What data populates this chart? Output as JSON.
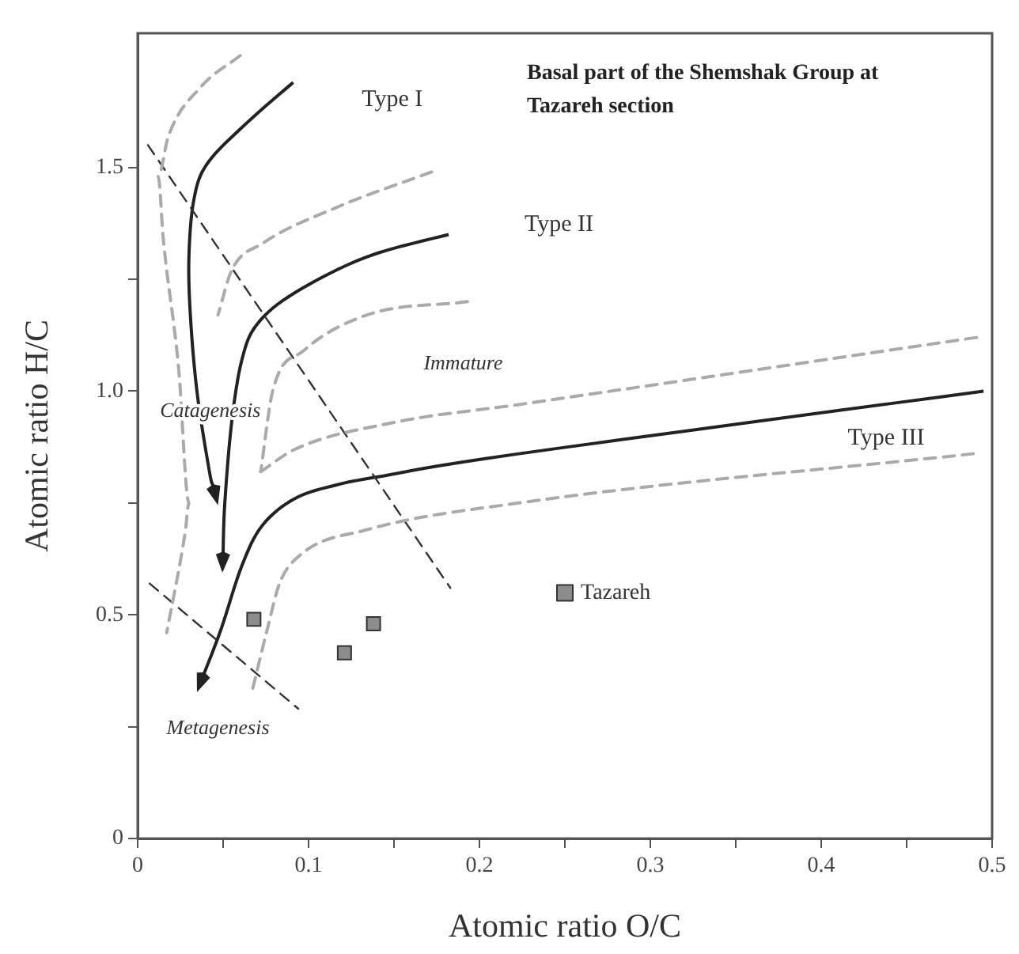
{
  "chart_data": {
    "type": "scatter",
    "title": "Basal part of the Shemshak Group at Tazareh section",
    "xlabel": "Atomic ratio O/C",
    "ylabel": "Atomic ratio H/C",
    "xlim": [
      0,
      0.5
    ],
    "ylim": [
      0,
      1.8
    ],
    "xticks": [
      0,
      {
        "value": 0.05,
        "label": null
      },
      0.1,
      {
        "value": 0.15,
        "label": null
      },
      0.2,
      {
        "value": 0.25,
        "label": null
      },
      0.3,
      {
        "value": 0.35,
        "label": null
      },
      0.4,
      {
        "value": 0.45,
        "label": null
      },
      0.5
    ],
    "yticks": [
      0,
      {
        "value": 0.25,
        "label": null
      },
      0.5,
      {
        "value": 0.75,
        "label": null
      },
      {
        "value": 1,
        "label": "1.0"
      },
      {
        "value": 1.25,
        "label": null
      },
      1.5
    ],
    "grid": false,
    "legend": "right",
    "series": [
      {
        "name": "Tazareh",
        "marker": "square",
        "color": "#8c8c8c",
        "x": [
          0.068,
          0.121,
          0.138
        ],
        "values": [
          0.49,
          0.415,
          0.48
        ]
      },
      {
        "type": "line",
        "line_style": "dashed",
        "color": "#aaaaaa",
        "x": [
          0.06,
          0.037,
          0.018,
          0.012,
          0.015,
          0.024,
          0.03,
          0.028,
          0.017
        ],
        "values": [
          1.75,
          1.68,
          1.57,
          1.48,
          1.34,
          1.05,
          0.75,
          0.69,
          0.46
        ]
      },
      {
        "type": "line",
        "line_style": "dashed",
        "color": "#aaaaaa",
        "x": [
          0.172,
          0.116,
          0.073,
          0.055,
          0.047
        ],
        "values": [
          1.49,
          1.41,
          1.33,
          1.27,
          1.17
        ]
      },
      {
        "type": "line",
        "line_style": "dashed",
        "color": "#aaaaaa",
        "x": [
          0.193,
          0.134,
          0.097,
          0.079,
          0.072
        ],
        "values": [
          1.2,
          1.17,
          1.09,
          1.0,
          0.82
        ]
      },
      {
        "type": "line",
        "line_style": "dashed",
        "color": "#aaaaaa",
        "x": [
          0.072,
          0.092,
          0.15,
          0.223,
          0.491
        ],
        "values": [
          0.82,
          0.87,
          0.93,
          0.97,
          1.12
        ]
      },
      {
        "type": "line",
        "line_style": "dashed",
        "color": "#aaaaaa",
        "x": [
          0.489,
          0.223,
          0.134,
          0.094,
          0.083,
          0.076,
          0.067
        ],
        "values": [
          0.86,
          0.75,
          0.69,
          0.63,
          0.57,
          0.47,
          0.33
        ]
      },
      {
        "type": "line",
        "line_style": "dashed",
        "color": "#333333",
        "x": [
          0.006,
          0.183
        ],
        "values": [
          1.55,
          0.56
        ]
      },
      {
        "type": "line",
        "line_style": "dashed",
        "color": "#333333",
        "x": [
          0.007,
          0.094
        ],
        "values": [
          0.57,
          0.29
        ]
      }
    ],
    "annotations": [
      "Type I",
      "Type II",
      "Type III",
      "Immature",
      "Catagenesis",
      "Metagenesis"
    ]
  }
}
